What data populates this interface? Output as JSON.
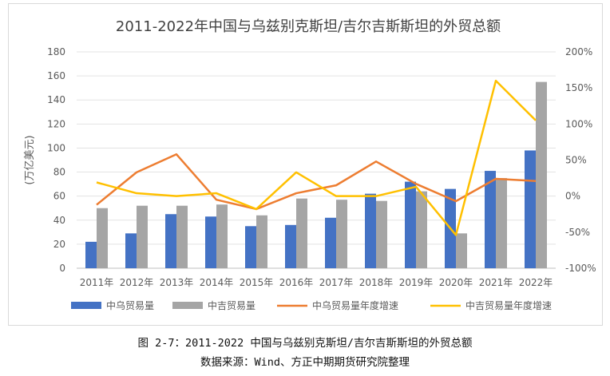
{
  "chart_data": {
    "type": "bar",
    "title": "2011-2022年中国与乌兹别克斯坦/吉尔吉斯斯坦的外贸总额",
    "ylabel": "(万亿美元)",
    "categories": [
      "2011年",
      "2012年",
      "2013年",
      "2014年",
      "2015年",
      "2016年",
      "2017年",
      "2018年",
      "2019年",
      "2020年",
      "2021年",
      "2022年"
    ],
    "ylim": [
      0,
      180
    ],
    "y_ticks": [
      "0",
      "20",
      "40",
      "60",
      "80",
      "100",
      "120",
      "140",
      "160",
      "180"
    ],
    "y2lim": [
      -100,
      200
    ],
    "y2_ticks": [
      "-100%",
      "-50%",
      "0%",
      "50%",
      "100%",
      "150%",
      "200%"
    ],
    "grid": true,
    "legend_position": "bottom",
    "series": [
      {
        "name": "中乌贸易量",
        "kind": "bar",
        "axis": "left",
        "color": "#4472C4",
        "values": [
          22,
          29,
          45,
          43,
          35,
          36,
          42,
          62,
          72,
          66,
          81,
          98
        ]
      },
      {
        "name": "中吉贸易量",
        "kind": "bar",
        "axis": "left",
        "color": "#A5A5A5",
        "values": [
          50,
          52,
          52,
          53,
          44,
          58,
          57,
          56,
          64,
          29,
          75,
          155
        ]
      },
      {
        "name": "中乌贸易量年度增速",
        "kind": "line",
        "axis": "right",
        "color": "#ED7D31",
        "values": [
          -12,
          33,
          58,
          -5,
          -18,
          4,
          15,
          48,
          17,
          -7,
          24,
          21
        ]
      },
      {
        "name": "中吉贸易量年度增速",
        "kind": "line",
        "axis": "right",
        "color": "#FFC000",
        "values": [
          19,
          4,
          0,
          4,
          -18,
          33,
          0,
          0,
          13,
          -54,
          160,
          105
        ]
      }
    ]
  },
  "captions": {
    "figure": "图 2-7：2011-2022 中国与乌兹别克斯坦/吉尔吉斯斯坦的外贸总额",
    "source": "数据来源：Wind、方正中期期货研究院整理"
  }
}
